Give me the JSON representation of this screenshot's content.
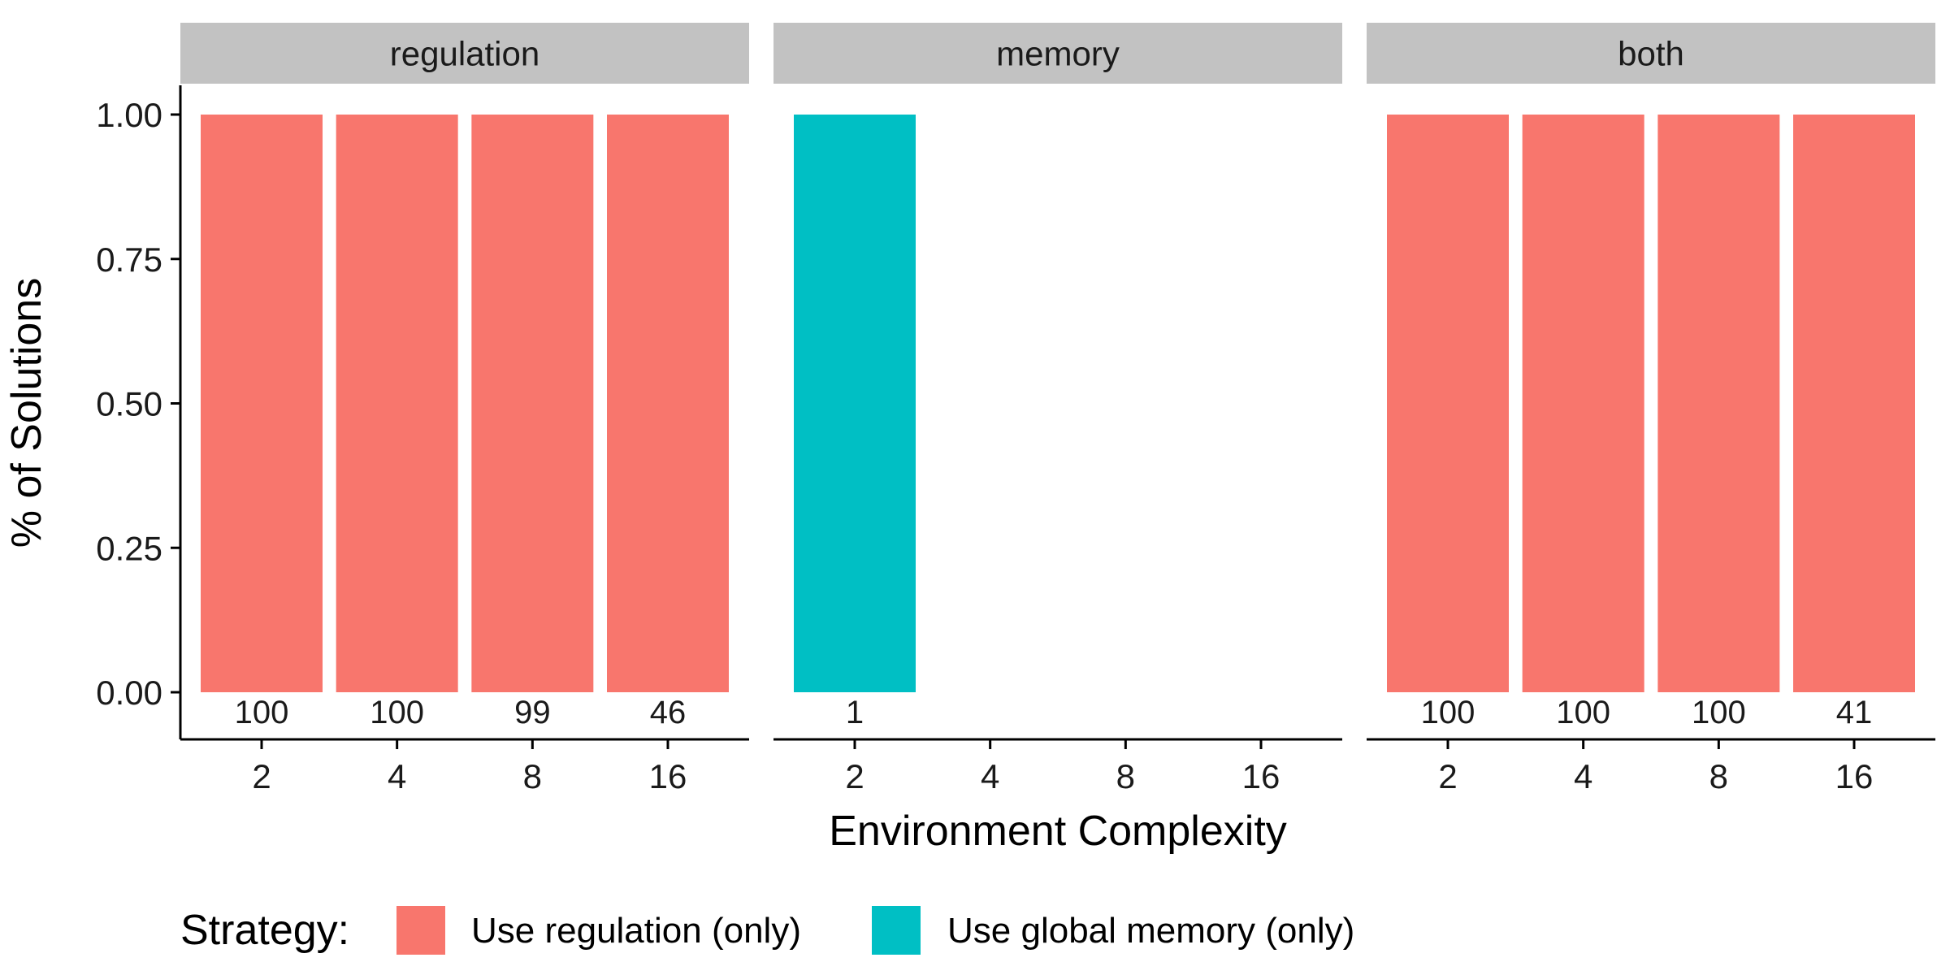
{
  "chart_data": {
    "type": "bar",
    "facets": [
      "regulation",
      "memory",
      "both"
    ],
    "categories": [
      "2",
      "4",
      "8",
      "16"
    ],
    "xlabel": "Environment Complexity",
    "ylabel": "% of Solutions",
    "ylim": [
      0,
      1
    ],
    "yticks": [
      "0.00",
      "0.25",
      "0.50",
      "0.75",
      "1.00"
    ],
    "ytick_values": [
      0,
      0.25,
      0.5,
      0.75,
      1.0
    ],
    "legend": {
      "title": "Strategy:",
      "position": "bottom",
      "entries": [
        {
          "name": "Use regulation (only)",
          "color": "#F8766D"
        },
        {
          "name": "Use global memory (only)",
          "color": "#00BFC4"
        }
      ]
    },
    "panels": [
      {
        "facet": "regulation",
        "bars": [
          {
            "category": "2",
            "value": 1.0,
            "strategy": "Use regulation (only)",
            "count": "100"
          },
          {
            "category": "4",
            "value": 1.0,
            "strategy": "Use regulation (only)",
            "count": "100"
          },
          {
            "category": "8",
            "value": 1.0,
            "strategy": "Use regulation (only)",
            "count": "99"
          },
          {
            "category": "16",
            "value": 1.0,
            "strategy": "Use regulation (only)",
            "count": "46"
          }
        ]
      },
      {
        "facet": "memory",
        "bars": [
          {
            "category": "2",
            "value": 1.0,
            "strategy": "Use global memory (only)",
            "count": "1"
          }
        ]
      },
      {
        "facet": "both",
        "bars": [
          {
            "category": "2",
            "value": 1.0,
            "strategy": "Use regulation (only)",
            "count": "100"
          },
          {
            "category": "4",
            "value": 1.0,
            "strategy": "Use regulation (only)",
            "count": "100"
          },
          {
            "category": "8",
            "value": 1.0,
            "strategy": "Use regulation (only)",
            "count": "100"
          },
          {
            "category": "16",
            "value": 1.0,
            "strategy": "Use regulation (only)",
            "count": "41"
          }
        ]
      }
    ]
  }
}
